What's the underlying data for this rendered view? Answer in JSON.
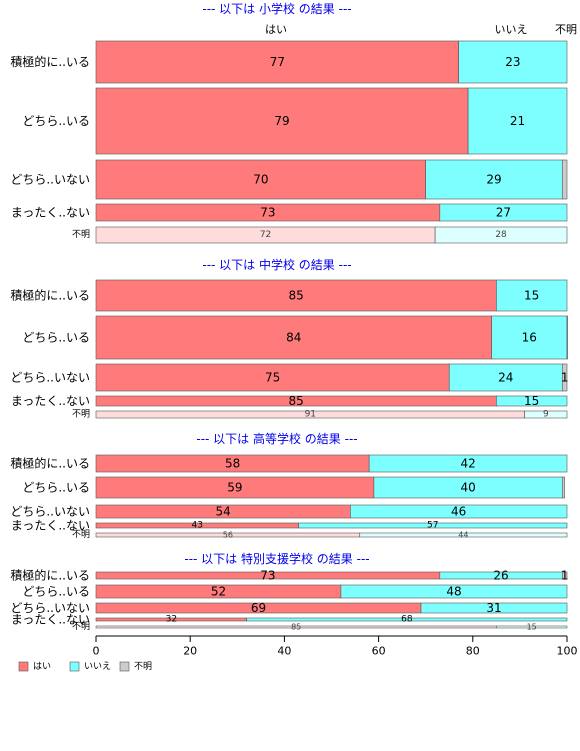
{
  "chart_data": {
    "type": "bar",
    "orientation": "horizontal",
    "stacked": true,
    "percent": true,
    "xlim": [
      0,
      100
    ],
    "x_ticks": [
      "0",
      "20",
      "40",
      "60",
      "80",
      "100"
    ],
    "top_headers": [
      "はい",
      "いいえ",
      "不明"
    ],
    "legend": {
      "position": "bottom-left",
      "items": [
        {
          "label": "はい",
          "color": "#ff7b7b"
        },
        {
          "label": "いいえ",
          "color": "#7dffff"
        },
        {
          "label": "不明",
          "color": "#cccccc"
        }
      ]
    },
    "panels": [
      {
        "title": "--- 以下は 小学校 の結果 ---",
        "rows": [
          {
            "label": "積極的に..いる",
            "values": [
              77,
              23,
              0
            ],
            "texts": [
              "77",
              "23",
              ""
            ],
            "faded": false
          },
          {
            "label": "どちら..いる",
            "values": [
              79,
              21,
              0
            ],
            "texts": [
              "79",
              "21",
              ""
            ],
            "faded": false
          },
          {
            "label": "どちら..いない",
            "values": [
              70,
              29,
              1
            ],
            "texts": [
              "70",
              "29",
              ""
            ],
            "faded": false
          },
          {
            "label": "まったく..ない",
            "values": [
              73,
              27,
              0
            ],
            "texts": [
              "73",
              "27",
              ""
            ],
            "faded": false
          },
          {
            "label": "不明",
            "values": [
              72,
              28,
              0
            ],
            "texts": [
              "72",
              "28",
              ""
            ],
            "faded": true
          }
        ]
      },
      {
        "title": "--- 以下は 中学校 の結果 ---",
        "rows": [
          {
            "label": "積極的に..いる",
            "values": [
              85,
              15,
              0
            ],
            "texts": [
              "85",
              "15",
              ""
            ],
            "faded": false
          },
          {
            "label": "どちら..いる",
            "values": [
              84,
              16,
              0.5
            ],
            "texts": [
              "84",
              "16",
              ""
            ],
            "faded": false
          },
          {
            "label": "どちら..いない",
            "values": [
              75,
              24,
              1
            ],
            "texts": [
              "75",
              "24",
              "1"
            ],
            "faded": false
          },
          {
            "label": "まったく..ない",
            "values": [
              85,
              15,
              0
            ],
            "texts": [
              "85",
              "15",
              ""
            ],
            "faded": false
          },
          {
            "label": "不明",
            "values": [
              91,
              9,
              0
            ],
            "texts": [
              "91",
              "9",
              ""
            ],
            "faded": true
          }
        ]
      },
      {
        "title": "--- 以下は 高等学校 の結果 ---",
        "rows": [
          {
            "label": "積極的に..いる",
            "values": [
              58,
              42,
              0
            ],
            "texts": [
              "58",
              "42",
              ""
            ],
            "faded": false
          },
          {
            "label": "どちら..いる",
            "values": [
              59,
              40,
              0.5
            ],
            "texts": [
              "59",
              "40",
              ""
            ],
            "faded": false
          },
          {
            "label": "どちら..いない",
            "values": [
              54,
              46,
              0
            ],
            "texts": [
              "54",
              "46",
              ""
            ],
            "faded": false
          },
          {
            "label": "まったく..ない",
            "values": [
              43,
              57,
              0
            ],
            "texts": [
              "43",
              "57",
              ""
            ],
            "faded": false
          },
          {
            "label": "不明",
            "values": [
              56,
              44,
              0
            ],
            "texts": [
              "56",
              "44",
              ""
            ],
            "faded": true
          }
        ]
      },
      {
        "title": "--- 以下は 特別支援学校 の結果 ---",
        "rows": [
          {
            "label": "積極的に..いる",
            "values": [
              73,
              26,
              1
            ],
            "texts": [
              "73",
              "26",
              "1"
            ],
            "faded": false
          },
          {
            "label": "どちら..いる",
            "values": [
              52,
              48,
              0
            ],
            "texts": [
              "52",
              "48",
              ""
            ],
            "faded": false
          },
          {
            "label": "どちら..いない",
            "values": [
              69,
              31,
              0
            ],
            "texts": [
              "69",
              "31",
              ""
            ],
            "faded": false
          },
          {
            "label": "まったく..ない",
            "values": [
              32,
              68,
              0
            ],
            "texts": [
              "32",
              "68",
              ""
            ],
            "faded": false
          },
          {
            "label": "不明",
            "values": [
              85,
              15,
              0
            ],
            "texts": [
              "85",
              "15",
              ""
            ],
            "faded": true
          }
        ]
      }
    ],
    "colors": {
      "yes": "#ff7b7b",
      "no": "#7dffff",
      "unknown": "#cccccc",
      "yes_faded": "#ffdcdc",
      "no_faded": "#dcffff",
      "title": "#0000ee"
    }
  }
}
